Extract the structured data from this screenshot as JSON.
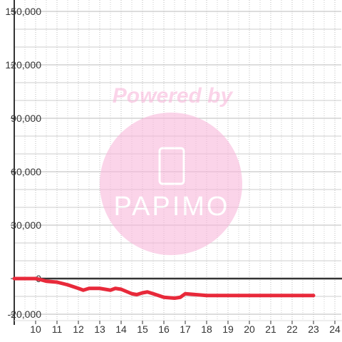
{
  "chart_data": {
    "type": "line",
    "x": [
      9,
      10,
      10.2,
      10.5,
      11,
      11.5,
      12,
      12.23,
      12.5,
      13,
      13.5,
      13.73,
      14,
      14.5,
      14.73,
      15,
      15.23,
      15.5,
      16,
      16.5,
      16.77,
      17,
      17.5,
      18,
      19,
      20,
      21,
      22,
      23
    ],
    "series": [
      {
        "color": "#e8293a",
        "values": [
          0,
          0,
          -500,
          -1500,
          -2000,
          -3500,
          -5500,
          -6500,
          -5500,
          -5500,
          -6500,
          -5500,
          -6000,
          -8500,
          -9000,
          -8000,
          -7500,
          -8500,
          -10500,
          -11000,
          -10500,
          -8500,
          -9000,
          -9500,
          -9500,
          -9500,
          -9500,
          -9500,
          -9500
        ]
      }
    ],
    "xlim": [
      9,
      24.3
    ],
    "ylim": [
      -20000,
      150000
    ],
    "xticks": [
      10,
      11,
      12,
      13,
      14,
      15,
      16,
      17,
      18,
      19,
      20,
      21,
      22,
      23,
      24
    ],
    "yticks": [
      {
        "value": -20000,
        "label": "-20,000"
      },
      0,
      {
        "value": 30000,
        "label": "30,000"
      },
      {
        "value": 60000,
        "label": "60,000"
      },
      {
        "value": 90000,
        "label": "90,000"
      },
      {
        "value": 120000,
        "label": "120,000"
      },
      {
        "value": 150000,
        "label": "150,000"
      }
    ],
    "yminorticks": [
      -10000,
      10000,
      20000,
      40000,
      50000,
      70000,
      80000,
      100000,
      110000,
      130000,
      140000
    ],
    "xminorticks": [
      9.5,
      10.5,
      11.5,
      12.5,
      13.5,
      14.5,
      15.5,
      16.5,
      17.5,
      18.5,
      19.5,
      20.5,
      21.5,
      22.5,
      23.5
    ],
    "grid": true,
    "watermark": {
      "top": "Powered by",
      "brand": "PAPIMO"
    }
  }
}
